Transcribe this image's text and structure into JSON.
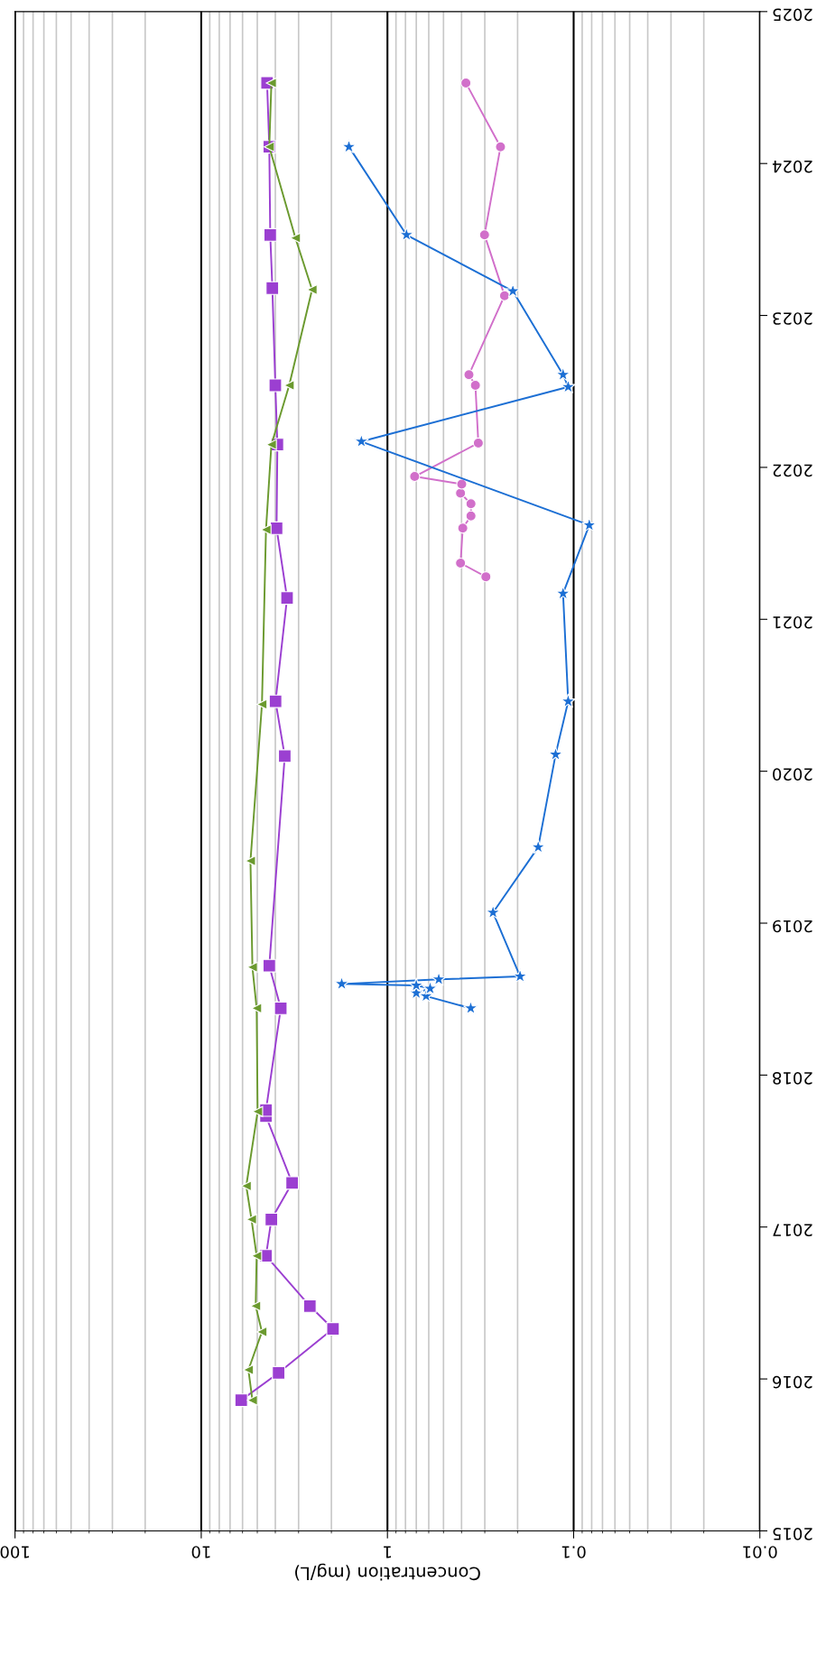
{
  "chart_data": {
    "type": "line",
    "xlabel": "Concentration (mg/L)",
    "log": "x",
    "xlim": [
      100,
      0.01
    ],
    "xticks": [
      0.01,
      0.1,
      1,
      10,
      100
    ],
    "ylim": [
      2015,
      2025
    ],
    "yticks": [
      2015,
      2016,
      2017,
      2018,
      2019,
      2020,
      2021,
      2022,
      2023,
      2024,
      2025
    ],
    "grid": "x",
    "series": [
      {
        "color": "#9b3fd1",
        "marker": "square",
        "x": [
          6.1,
          3.84,
          1.96,
          2.61,
          4.49,
          4.2,
          3.25,
          4.49,
          4.49,
          3.74,
          4.31,
          3.56,
          3.99,
          3.46,
          3.94,
          3.9,
          4.0,
          4.15,
          4.26,
          4.31,
          4.43
        ],
        "values": [
          2015.86,
          2016.04,
          2016.33,
          2016.48,
          2016.81,
          2017.05,
          2017.29,
          2017.73,
          2017.77,
          2018.44,
          2018.72,
          2020.1,
          2020.46,
          2021.14,
          2021.6,
          2022.15,
          2022.54,
          2023.18,
          2023.53,
          2024.11,
          2024.53
        ]
      },
      {
        "color": "#6b9a2f",
        "marker": "triangle",
        "x": [
          5.31,
          5.58,
          4.72,
          5.1,
          5.04,
          5.37,
          5.73,
          4.98,
          5.04,
          5.31,
          5.44,
          4.72,
          4.49,
          4.2,
          3.37,
          2.54,
          3.12,
          4.31,
          4.2
        ],
        "values": [
          2015.86,
          2016.06,
          2016.31,
          2016.48,
          2016.81,
          2017.05,
          2017.27,
          2017.76,
          2018.44,
          2018.71,
          2019.41,
          2020.44,
          2021.59,
          2022.15,
          2022.54,
          2023.17,
          2023.51,
          2024.11,
          2024.53
        ]
      },
      {
        "color": "#d16fca",
        "marker": "circle",
        "x": [
          0.296,
          0.405,
          0.394,
          0.356,
          0.356,
          0.405,
          0.399,
          0.714,
          0.325,
          0.337,
          0.365,
          0.235,
          0.301,
          0.247,
          0.379
        ],
        "values": [
          2021.28,
          2021.37,
          2021.6,
          2021.68,
          2021.76,
          2021.83,
          2021.89,
          2021.94,
          2022.16,
          2022.54,
          2022.61,
          2023.13,
          2023.53,
          2024.11,
          2024.53
        ]
      },
      {
        "color": "#1c6fd4",
        "marker": "star",
        "x": [
          0.357,
          0.62,
          0.7,
          0.59,
          0.7,
          1.76,
          0.53,
          0.194,
          0.271,
          0.155,
          0.125,
          0.107,
          0.114,
          0.0824,
          1.38,
          0.107,
          0.114,
          0.212,
          0.79,
          1.61
        ],
        "values": [
          2018.44,
          2018.52,
          2018.54,
          2018.57,
          2018.59,
          2018.6,
          2018.63,
          2018.65,
          2019.07,
          2019.5,
          2020.11,
          2020.46,
          2021.17,
          2021.62,
          2022.17,
          2022.53,
          2022.61,
          2023.16,
          2023.53,
          2024.11
        ]
      }
    ]
  }
}
